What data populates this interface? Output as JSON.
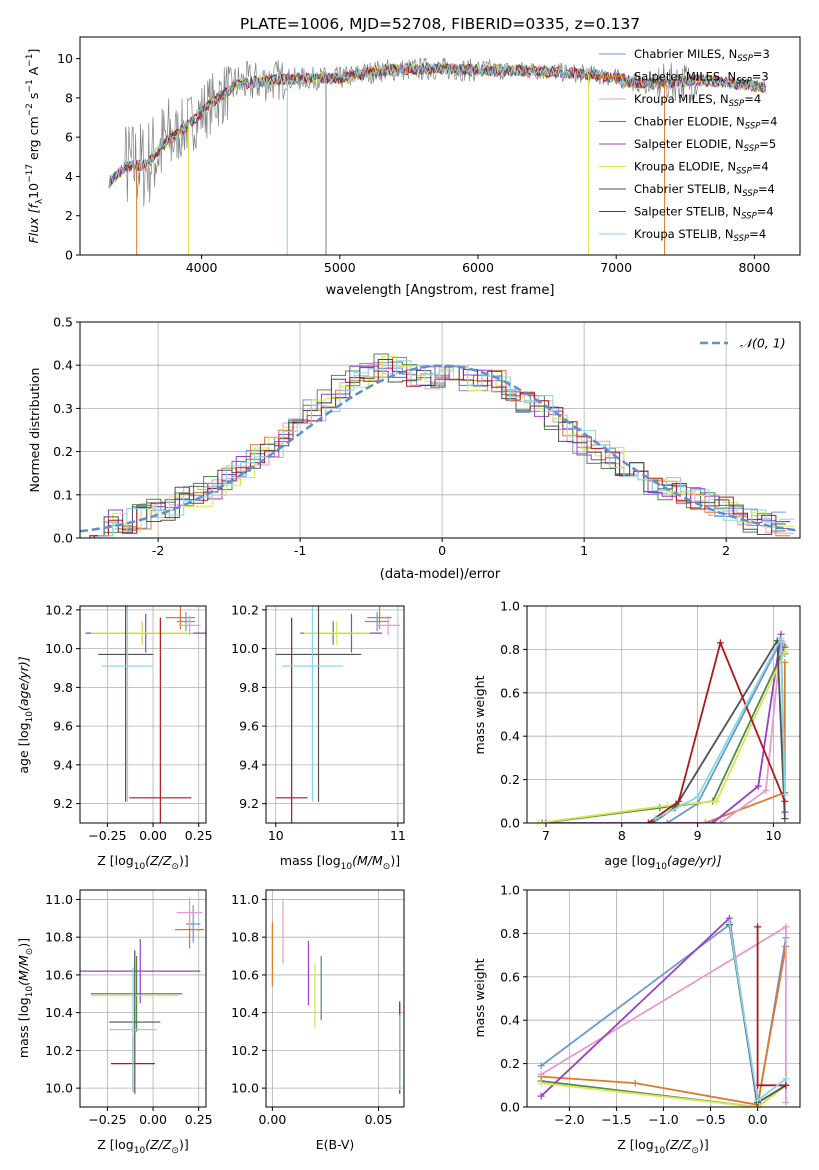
{
  "figure_title": "PLATE=1006, MJD=52708, FIBERID=0335, z=0.137",
  "colors": {
    "Chabrier MILES": "#6b96d6",
    "Salpeter MILES": "#e0782c",
    "Kroupa MILES": "#e59ad0",
    "Chabrier ELODIE": "#4f8a4f",
    "Salpeter ELODIE": "#9a3fc4",
    "Kroupa ELODIE": "#d7e84d",
    "Chabrier STELIB": "#505050",
    "Salpeter STELIB": "#b01818",
    "Kroupa STELIB": "#82d7e6",
    "data": "#808080",
    "normal": "#5b8fd6"
  },
  "chart_data": [
    {
      "id": "spectrum",
      "type": "line",
      "title": "PLATE=1006, MJD=52708, FIBERID=0335, z=0.137",
      "xlabel": "wavelength [Angstrom, rest frame]",
      "ylabel_parts": [
        "Flux [f",
        "λ",
        "10",
        "−17",
        " erg cm",
        "−2",
        " s",
        "−1",
        " A",
        "−1",
        "]"
      ],
      "xlim": [
        3120,
        8330
      ],
      "ylim": [
        0,
        11.1
      ],
      "xticks": [
        4000,
        5000,
        6000,
        7000,
        8000
      ],
      "yticks": [
        0,
        2,
        4,
        6,
        8,
        10
      ],
      "grid": false,
      "legend_position": "upper-right",
      "legend": [
        {
          "name": "Chabrier MILES",
          "nssp": "3"
        },
        {
          "name": "Salpeter MILES",
          "nssp": "3"
        },
        {
          "name": "Kroupa MILES",
          "nssp": "4"
        },
        {
          "name": "Chabrier ELODIE",
          "nssp": "4"
        },
        {
          "name": "Salpeter ELODIE",
          "nssp": "5"
        },
        {
          "name": "Kroupa ELODIE",
          "nssp": "4"
        },
        {
          "name": "Chabrier STELIB",
          "nssp": "4"
        },
        {
          "name": "Salpeter STELIB",
          "nssp": "4"
        },
        {
          "name": "Kroupa STELIB",
          "nssp": "4"
        }
      ],
      "continuum": {
        "wavelength": [
          3330,
          3450,
          3600,
          3750,
          3900,
          4050,
          4250,
          4500,
          4800,
          5000,
          5300,
          5700,
          6000,
          6400,
          6800,
          7000,
          7200,
          7400,
          7600,
          7800,
          8100
        ],
        "flux": [
          3.7,
          4.5,
          4.6,
          5.8,
          6.6,
          7.6,
          8.7,
          8.9,
          9.0,
          9.0,
          9.4,
          9.5,
          9.4,
          9.4,
          9.2,
          9.0,
          8.7,
          8.8,
          8.9,
          8.8,
          8.5
        ]
      }
    },
    {
      "id": "residuals",
      "type": "bar",
      "xlabel": "(data-model)/error",
      "ylabel": "Normed distribution",
      "xlim": [
        -2.55,
        2.52
      ],
      "ylim": [
        0,
        0.5
      ],
      "xticks": [
        -2,
        -1,
        0,
        1,
        2
      ],
      "yticks": [
        0.0,
        0.1,
        0.2,
        0.3,
        0.4,
        0.5
      ],
      "grid": true,
      "legend_position": "upper-right",
      "legend_label": "𝒩(0, 1)",
      "bin_centers": [
        -2.4,
        -2.3,
        -2.2,
        -2.1,
        -2.0,
        -1.9,
        -1.8,
        -1.7,
        -1.6,
        -1.5,
        -1.4,
        -1.3,
        -1.2,
        -1.1,
        -1.0,
        -0.9,
        -0.8,
        -0.7,
        -0.6,
        -0.5,
        -0.4,
        -0.3,
        -0.2,
        -0.1,
        0.0,
        0.1,
        0.2,
        0.3,
        0.4,
        0.5,
        0.6,
        0.7,
        0.8,
        0.9,
        1.0,
        1.1,
        1.2,
        1.3,
        1.4,
        1.5,
        1.6,
        1.7,
        1.8,
        1.9,
        2.0,
        2.1,
        2.2,
        2.3,
        2.4
      ],
      "hist_envelope": [
        0.03,
        0.04,
        0.04,
        0.05,
        0.06,
        0.07,
        0.09,
        0.1,
        0.12,
        0.14,
        0.16,
        0.19,
        0.21,
        0.24,
        0.27,
        0.3,
        0.32,
        0.35,
        0.37,
        0.39,
        0.4,
        0.39,
        0.38,
        0.37,
        0.37,
        0.38,
        0.37,
        0.36,
        0.36,
        0.33,
        0.32,
        0.3,
        0.28,
        0.25,
        0.22,
        0.2,
        0.18,
        0.16,
        0.15,
        0.13,
        0.11,
        0.1,
        0.09,
        0.08,
        0.07,
        0.05,
        0.04,
        0.03,
        0.03
      ]
    },
    {
      "id": "age-vs-Z",
      "type": "scatter",
      "xlabel_parts": [
        "Z [log",
        "10",
        "(Z/Z",
        "⊙",
        ")]"
      ],
      "ylabel_parts": [
        "age  [log",
        "10",
        "(age/yr)]"
      ],
      "xlim": [
        -0.4,
        0.29
      ],
      "ylim": [
        9.1,
        10.22
      ],
      "xticks": [
        -0.25,
        0.0,
        0.25
      ],
      "xtick_labels": [
        "−0.25",
        "0.00",
        "0.25"
      ],
      "yticks": [
        9.2,
        9.4,
        9.6,
        9.8,
        10.0,
        10.2
      ],
      "grid": true,
      "points": [
        {
          "series": "Chabrier MILES",
          "x": 0.18,
          "y": 10.14,
          "xerr": 0.05,
          "yerr": 0.05
        },
        {
          "series": "Salpeter MILES",
          "x": 0.15,
          "y": 10.16,
          "xerr": 0.08,
          "yerr": 0.06
        },
        {
          "series": "Kroupa MILES",
          "x": 0.2,
          "y": 10.12,
          "xerr": 0.06,
          "yerr": 0.05
        },
        {
          "series": "Chabrier ELODIE",
          "x": -0.06,
          "y": 10.08,
          "xerr": 0.28,
          "yerr": 0.06
        },
        {
          "series": "Salpeter ELODIE",
          "x": -0.04,
          "y": 10.08,
          "xerr": 0.33,
          "yerr": 0.1
        },
        {
          "series": "Kroupa ELODIE",
          "x": -0.06,
          "y": 10.08,
          "xerr": 0.28,
          "yerr": 0.06
        },
        {
          "series": "Chabrier STELIB",
          "x": -0.15,
          "y": 9.97,
          "xerr": 0.15,
          "yerr": 0.76
        },
        {
          "series": "Salpeter STELIB",
          "x": 0.04,
          "y": 9.23,
          "xerr": 0.17,
          "yerr": 0.93
        },
        {
          "series": "Kroupa STELIB",
          "x": -0.14,
          "y": 9.91,
          "xerr": 0.14,
          "yerr": 0.7
        }
      ]
    },
    {
      "id": "age-vs-mass",
      "type": "scatter",
      "xlabel_parts": [
        "mass [log",
        "10",
        "(M/M",
        "⊙",
        ")]"
      ],
      "xlim": [
        9.92,
        11.05
      ],
      "ylim": [
        9.1,
        10.22
      ],
      "xticks": [
        10,
        11
      ],
      "yticks": [
        9.2,
        9.4,
        9.6,
        9.8,
        10.0,
        10.2
      ],
      "grid": true,
      "points": [
        {
          "series": "Chabrier MILES",
          "x": 10.83,
          "y": 10.14,
          "xerr": 0.1,
          "yerr": 0.05
        },
        {
          "series": "Salpeter MILES",
          "x": 10.85,
          "y": 10.16,
          "xerr": 0.1,
          "yerr": 0.06
        },
        {
          "series": "Kroupa MILES",
          "x": 10.92,
          "y": 10.12,
          "xerr": 0.1,
          "yerr": 0.05
        },
        {
          "series": "Chabrier ELODIE",
          "x": 10.47,
          "y": 10.08,
          "xerr": 0.27,
          "yerr": 0.06
        },
        {
          "series": "Salpeter ELODIE",
          "x": 10.62,
          "y": 10.08,
          "xerr": 0.25,
          "yerr": 0.1
        },
        {
          "series": "Kroupa ELODIE",
          "x": 10.5,
          "y": 10.08,
          "xerr": 0.27,
          "yerr": 0.06
        },
        {
          "series": "Chabrier STELIB",
          "x": 10.35,
          "y": 9.97,
          "xerr": 0.35,
          "yerr": 0.76
        },
        {
          "series": "Salpeter STELIB",
          "x": 10.13,
          "y": 9.23,
          "xerr": 0.13,
          "yerr": 0.93
        },
        {
          "series": "Kroupa STELIB",
          "x": 10.3,
          "y": 9.91,
          "xerr": 0.25,
          "yerr": 0.7
        }
      ]
    },
    {
      "id": "massweight-vs-age",
      "type": "line",
      "xlabel_parts": [
        "age  [log",
        "10",
        "(age/yr)]"
      ],
      "ylabel": "mass weight",
      "xlim": [
        6.75,
        10.35
      ],
      "ylim": [
        0,
        1.0
      ],
      "xticks": [
        7,
        8,
        9,
        10
      ],
      "yticks": [
        0.0,
        0.2,
        0.4,
        0.6,
        0.8,
        1.0
      ],
      "grid": true,
      "series": [
        {
          "name": "Chabrier MILES",
          "x": [
            8.6,
            9.0,
            10.1,
            10.15
          ],
          "y": [
            0.0,
            0.09,
            0.84,
            0.78
          ]
        },
        {
          "name": "Salpeter MILES",
          "x": [
            9.1,
            10.15,
            10.15
          ],
          "y": [
            0.0,
            0.14,
            0.74
          ]
        },
        {
          "name": "Kroupa MILES",
          "x": [
            9.3,
            9.9,
            10.1,
            10.15
          ],
          "y": [
            0.0,
            0.15,
            0.84,
            0.82
          ]
        },
        {
          "name": "Chabrier ELODIE",
          "x": [
            6.95,
            8.5,
            9.2,
            10.15
          ],
          "y": [
            0.0,
            0.07,
            0.1,
            0.81
          ]
        },
        {
          "name": "Salpeter ELODIE",
          "x": [
            7.0,
            9.2,
            9.8,
            10.1,
            10.15
          ],
          "y": [
            0.0,
            0.0,
            0.17,
            0.87,
            0.05
          ]
        },
        {
          "name": "Kroupa ELODIE",
          "x": [
            6.9,
            8.6,
            9.25,
            10.15
          ],
          "y": [
            0.0,
            0.08,
            0.1,
            0.79
          ]
        },
        {
          "name": "Chabrier STELIB",
          "x": [
            8.4,
            8.7,
            10.05,
            10.15
          ],
          "y": [
            0.0,
            0.07,
            0.84,
            0.02
          ]
        },
        {
          "name": "Salpeter STELIB",
          "x": [
            8.35,
            8.75,
            9.3,
            10.15
          ],
          "y": [
            0.0,
            0.1,
            0.83,
            0.1
          ]
        },
        {
          "name": "Kroupa STELIB",
          "x": [
            8.45,
            9.0,
            10.1,
            10.15
          ],
          "y": [
            0.02,
            0.12,
            0.85,
            0.13
          ]
        }
      ]
    },
    {
      "id": "mass-vs-Z",
      "type": "scatter",
      "xlabel_parts": [
        "Z [log",
        "10",
        "(Z/Z",
        "⊙",
        ")]"
      ],
      "ylabel_parts": [
        "mass [log",
        "10",
        "(M/M",
        "⊙",
        ")]"
      ],
      "xlim": [
        -0.4,
        0.29
      ],
      "ylim": [
        9.9,
        11.05
      ],
      "xticks": [
        -0.25,
        0.0,
        0.25
      ],
      "xtick_labels": [
        "−0.25",
        "0.00",
        "0.25"
      ],
      "yticks": [
        10.0,
        10.2,
        10.4,
        10.6,
        10.8,
        11.0
      ],
      "grid": true,
      "points": [
        {
          "series": "Chabrier MILES",
          "x": 0.22,
          "y": 10.87,
          "xerr": 0.04,
          "yerr": 0.1
        },
        {
          "series": "Salpeter MILES",
          "x": 0.2,
          "y": 10.84,
          "xerr": 0.08,
          "yerr": 0.1
        },
        {
          "series": "Kroupa MILES",
          "x": 0.2,
          "y": 10.93,
          "xerr": 0.07,
          "yerr": 0.08
        },
        {
          "series": "Chabrier ELODIE",
          "x": -0.09,
          "y": 10.5,
          "xerr": 0.25,
          "yerr": 0.2
        },
        {
          "series": "Salpeter ELODIE",
          "x": -0.07,
          "y": 10.62,
          "xerr": 0.33,
          "yerr": 0.17
        },
        {
          "series": "Kroupa ELODIE",
          "x": -0.1,
          "y": 10.49,
          "xerr": 0.24,
          "yerr": 0.2
        },
        {
          "series": "Chabrier STELIB",
          "x": -0.1,
          "y": 10.35,
          "xerr": 0.14,
          "yerr": 0.38
        },
        {
          "series": "Salpeter STELIB",
          "x": -0.11,
          "y": 10.13,
          "xerr": 0.12,
          "yerr": 0.15
        },
        {
          "series": "Kroupa STELIB",
          "x": -0.11,
          "y": 10.31,
          "xerr": 0.13,
          "yerr": 0.33
        }
      ]
    },
    {
      "id": "mass-vs-ebv",
      "type": "scatter",
      "xlabel": "E(B-V)",
      "xlim": [
        -0.003,
        0.062
      ],
      "ylim": [
        9.9,
        11.05
      ],
      "xticks": [
        0.0,
        0.05
      ],
      "xtick_labels": [
        "0.00",
        "0.05"
      ],
      "yticks": [
        10.0,
        10.2,
        10.4,
        10.6,
        10.8,
        11.0
      ],
      "grid": true,
      "points": [
        {
          "series": "Chabrier MILES",
          "x": 0.06,
          "y": 10.22,
          "xerr": 0,
          "yerr": 0.22
        },
        {
          "series": "Salpeter MILES",
          "x": 0.0,
          "y": 10.71,
          "xerr": 0,
          "yerr": 0.17
        },
        {
          "series": "Kroupa MILES",
          "x": 0.005,
          "y": 10.83,
          "xerr": 0,
          "yerr": 0.17
        },
        {
          "series": "Chabrier ELODIE",
          "x": 0.023,
          "y": 10.53,
          "xerr": 0,
          "yerr": 0.17
        },
        {
          "series": "Salpeter ELODIE",
          "x": 0.017,
          "y": 10.61,
          "xerr": 0,
          "yerr": 0.17
        },
        {
          "series": "Kroupa ELODIE",
          "x": 0.02,
          "y": 10.49,
          "xerr": 0,
          "yerr": 0.17
        },
        {
          "series": "Chabrier STELIB",
          "x": 0.06,
          "y": 10.17,
          "xerr": 0,
          "yerr": 0.2
        },
        {
          "series": "Salpeter STELIB",
          "x": 0.06,
          "y": 10.25,
          "xerr": 0,
          "yerr": 0.21
        },
        {
          "series": "Kroupa STELIB",
          "x": 0.06,
          "y": 10.19,
          "xerr": 0,
          "yerr": 0.2
        }
      ]
    },
    {
      "id": "massweight-vs-Z",
      "type": "line",
      "xlabel_parts": [
        "Z [log",
        "10",
        "(Z/Z",
        "⊙",
        ")]"
      ],
      "ylabel": "mass weight",
      "xlim": [
        -2.45,
        0.45
      ],
      "ylim": [
        0,
        1.0
      ],
      "xticks": [
        -2.0,
        -1.5,
        -1.0,
        -0.5,
        0.0
      ],
      "xtick_labels": [
        "−2.0",
        "−1.5",
        "−1.0",
        "−0.5",
        "0.0"
      ],
      "yticks": [
        0.0,
        0.2,
        0.4,
        0.6,
        0.8,
        1.0
      ],
      "grid": true,
      "series": [
        {
          "name": "Chabrier MILES",
          "x": [
            -2.3,
            -0.3,
            0.0,
            0.3
          ],
          "y": [
            0.19,
            0.84,
            0.0,
            0.78
          ]
        },
        {
          "name": "Salpeter MILES",
          "x": [
            -2.3,
            -1.3,
            0.0,
            0.3
          ],
          "y": [
            0.14,
            0.11,
            0.01,
            0.74
          ]
        },
        {
          "name": "Kroupa MILES",
          "x": [
            -2.3,
            0.3,
            0.3
          ],
          "y": [
            0.15,
            0.83,
            0.02
          ]
        },
        {
          "name": "Chabrier ELODIE",
          "x": [
            -2.3,
            0.0,
            0.3
          ],
          "y": [
            0.12,
            0.0,
            0.1
          ]
        },
        {
          "name": "Salpeter ELODIE",
          "x": [
            -2.3,
            -0.3,
            0.0
          ],
          "y": [
            0.05,
            0.87,
            0.0
          ]
        },
        {
          "name": "Kroupa ELODIE",
          "x": [
            -2.3,
            0.0,
            0.3
          ],
          "y": [
            0.11,
            0.0,
            0.1
          ]
        },
        {
          "name": "Chabrier STELIB",
          "x": [
            -0.3,
            0.0,
            0.3
          ],
          "y": [
            0.84,
            0.02,
            0.1
          ]
        },
        {
          "name": "Salpeter STELIB",
          "x": [
            0.0,
            0.0,
            0.3
          ],
          "y": [
            0.83,
            0.1,
            0.1
          ]
        },
        {
          "name": "Kroupa STELIB",
          "x": [
            -0.3,
            0.0,
            0.3
          ],
          "y": [
            0.85,
            0.03,
            0.13
          ]
        }
      ]
    }
  ]
}
